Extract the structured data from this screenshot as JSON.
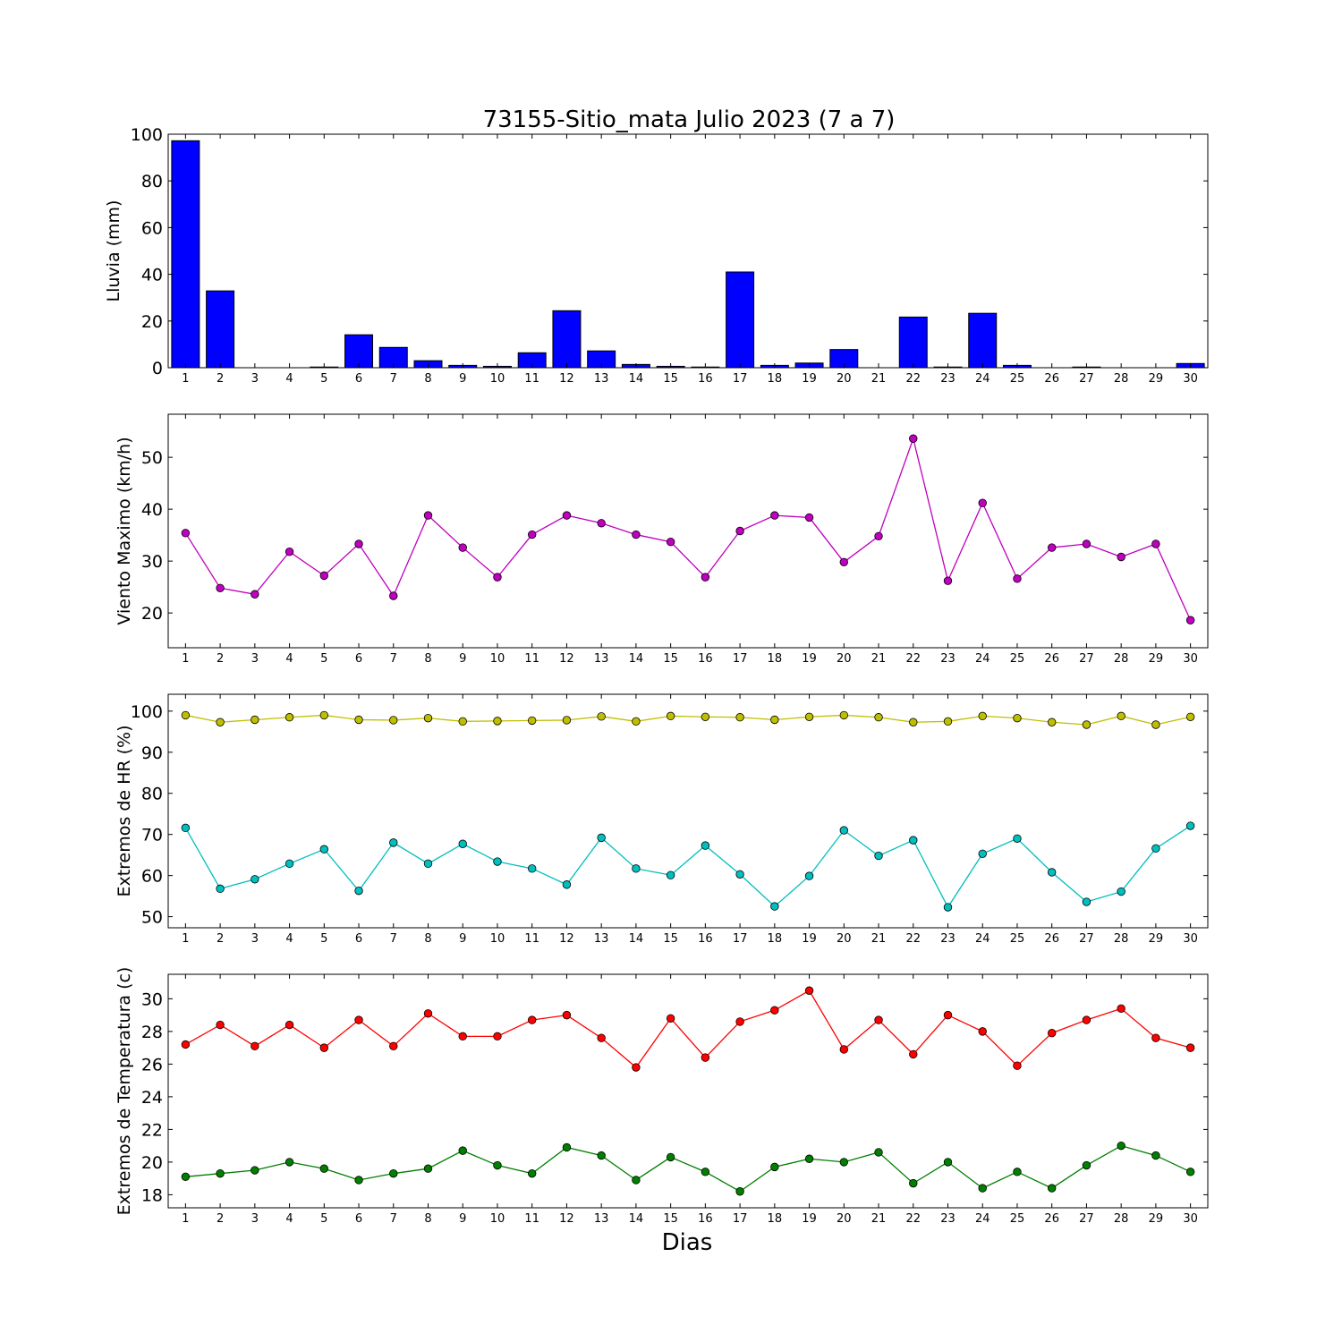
{
  "figure": {
    "title": "73155-Sitio_mata Julio 2023  (7 a 7)",
    "xlabel": "Dias"
  },
  "chart_data": [
    {
      "type": "bar",
      "ylabel": "Lluvia (mm)",
      "categories": [
        1,
        2,
        3,
        4,
        5,
        6,
        7,
        8,
        9,
        10,
        11,
        12,
        13,
        14,
        15,
        16,
        17,
        18,
        19,
        20,
        21,
        22,
        23,
        24,
        25,
        26,
        27,
        28,
        29,
        30
      ],
      "ylim": [
        0,
        100
      ],
      "yticks": [
        0,
        20,
        40,
        60,
        80,
        100
      ],
      "series": [
        {
          "color": "#0000ff",
          "values": [
            97.2,
            32.9,
            0,
            0,
            0.3,
            14.1,
            8.7,
            3.0,
            1.0,
            0.6,
            6.4,
            24.4,
            7.2,
            1.4,
            0.6,
            0.3,
            41.0,
            1.0,
            2.0,
            7.8,
            0,
            21.7,
            0.3,
            23.3,
            1.0,
            0,
            0.3,
            0,
            0,
            1.8
          ]
        }
      ]
    },
    {
      "type": "line",
      "ylabel": "Viento Maximo (km/h)",
      "x": [
        1,
        2,
        3,
        4,
        5,
        6,
        7,
        8,
        9,
        10,
        11,
        12,
        13,
        14,
        15,
        16,
        17,
        18,
        19,
        20,
        21,
        22,
        23,
        24,
        25,
        26,
        27,
        28,
        29,
        30
      ],
      "ylim": [
        13.3,
        58.3
      ],
      "yticks": [
        20,
        30,
        40,
        50
      ],
      "series": [
        {
          "color": "#bf00bf",
          "values": [
            35.4,
            24.8,
            23.6,
            31.8,
            27.2,
            33.3,
            23.3,
            38.8,
            32.6,
            26.9,
            35.1,
            38.8,
            37.3,
            35.1,
            33.7,
            26.9,
            35.8,
            38.8,
            38.4,
            29.8,
            34.8,
            53.6,
            26.2,
            41.2,
            26.6,
            32.6,
            33.3,
            30.8,
            33.3,
            18.6
          ]
        }
      ]
    },
    {
      "type": "line",
      "ylabel": "Extremos de HR (%)",
      "x": [
        1,
        2,
        3,
        4,
        5,
        6,
        7,
        8,
        9,
        10,
        11,
        12,
        13,
        14,
        15,
        16,
        17,
        18,
        19,
        20,
        21,
        22,
        23,
        24,
        25,
        26,
        27,
        28,
        29,
        30
      ],
      "ylim": [
        47.3,
        104.1
      ],
      "yticks": [
        50,
        60,
        70,
        80,
        90,
        100
      ],
      "series": [
        {
          "color": "#bfbf00",
          "values": [
            99.0,
            97.3,
            97.9,
            98.5,
            99.0,
            97.9,
            97.8,
            98.3,
            97.5,
            97.6,
            97.7,
            97.8,
            98.7,
            97.5,
            98.8,
            98.6,
            98.5,
            97.9,
            98.6,
            99.0,
            98.5,
            97.3,
            97.5,
            98.8,
            98.3,
            97.3,
            96.7,
            98.8,
            96.7,
            98.6
          ]
        },
        {
          "color": "#00bfbf",
          "values": [
            71.6,
            56.8,
            59.1,
            62.9,
            66.4,
            56.3,
            68.0,
            62.9,
            67.7,
            63.4,
            61.7,
            57.8,
            69.2,
            61.7,
            60.1,
            67.3,
            60.3,
            52.5,
            59.9,
            71.0,
            64.8,
            68.6,
            52.3,
            65.3,
            69.0,
            60.8,
            53.6,
            56.1,
            66.6,
            72.1
          ]
        }
      ]
    },
    {
      "type": "line",
      "ylabel": "Extremos de Temperatura (c)",
      "x": [
        1,
        2,
        3,
        4,
        5,
        6,
        7,
        8,
        9,
        10,
        11,
        12,
        13,
        14,
        15,
        16,
        17,
        18,
        19,
        20,
        21,
        22,
        23,
        24,
        25,
        26,
        27,
        28,
        29,
        30
      ],
      "ylim": [
        17.2,
        31.5
      ],
      "yticks": [
        18,
        20,
        22,
        24,
        26,
        28,
        30
      ],
      "series": [
        {
          "color": "#ff0000",
          "values": [
            27.2,
            28.4,
            27.1,
            28.4,
            27.0,
            28.7,
            27.1,
            29.1,
            27.7,
            27.7,
            28.7,
            29.0,
            27.6,
            25.8,
            28.8,
            26.4,
            28.6,
            29.3,
            30.5,
            26.9,
            28.7,
            26.6,
            29.0,
            28.0,
            25.9,
            27.9,
            28.7,
            29.4,
            27.6,
            27.0
          ]
        },
        {
          "color": "#007f00",
          "values": [
            19.1,
            19.3,
            19.5,
            20.0,
            19.6,
            18.9,
            19.3,
            19.6,
            20.7,
            19.8,
            19.3,
            20.9,
            20.4,
            18.9,
            20.3,
            19.4,
            18.2,
            19.7,
            20.2,
            20.0,
            20.6,
            18.7,
            20.0,
            18.4,
            19.4,
            18.4,
            19.8,
            21.0,
            20.4,
            19.4
          ]
        }
      ]
    }
  ]
}
